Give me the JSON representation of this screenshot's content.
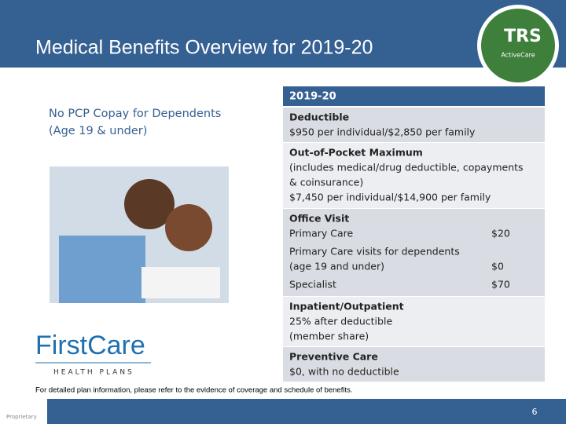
{
  "header": {
    "title": "Medical Benefits Overview for 2019-20",
    "logo": {
      "text": "TRS",
      "subtext": "ActiveCare"
    }
  },
  "left": {
    "heading_lines": [
      "No PCP Copay for Dependents",
      "(Age 19 & under)"
    ],
    "firstcare_logo": {
      "name": "FirstCare",
      "tagline": "HEALTH PLANS"
    }
  },
  "table": {
    "header": "2019-20",
    "rows": [
      {
        "lines": [
          "Deductible",
          "$950 per individual/$2,850 per family"
        ]
      },
      {
        "lines": [
          "Out-of-Pocket Maximum",
          "(includes medical/drug deductible, copayments",
          "& coinsurance)",
          "$7,450 per individual/$14,900 per family"
        ]
      },
      {
        "title": "Office Visit",
        "items": [
          {
            "label": [
              "Primary Care"
            ],
            "value": "$20"
          },
          {
            "label": [
              "Primary Care visits for dependents",
              "(age 19 and under)"
            ],
            "value": "$0"
          },
          {
            "label": [
              "Specialist"
            ],
            "value": "$70"
          }
        ]
      },
      {
        "lines": [
          "Inpatient/Outpatient",
          "25% after deductible",
          "(member share)"
        ]
      },
      {
        "lines": [
          "Preventive Care",
          "$0, with no deductible"
        ]
      }
    ]
  },
  "footer": {
    "note": "For detailed plan information, please refer to the evidence of coverage and schedule of benefits.",
    "label": "Proprietary",
    "page": "6"
  }
}
